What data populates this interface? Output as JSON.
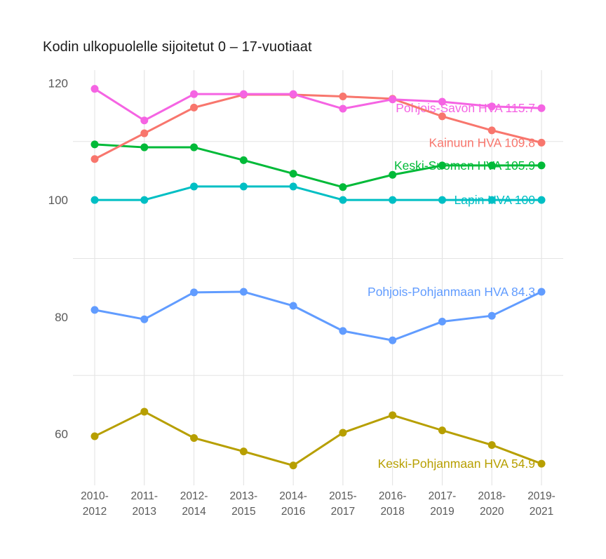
{
  "title": "Kodin ulkopuolelle sijoitetut 0 – 17-vuotiaat",
  "chart_data": {
    "type": "line",
    "title": "Kodin ulkopuolelle sijoitetut 0 – 17-vuotiaat",
    "xlabel": "",
    "ylabel": "",
    "categories": [
      "2010-2012",
      "2011-2013",
      "2012-2014",
      "2013-2015",
      "2014-2016",
      "2015-2017",
      "2016-2018",
      "2017-2019",
      "2018-2020",
      "2019-2021"
    ],
    "y_ticks": [
      60,
      80,
      100,
      120
    ],
    "y_minor_gridlines": [
      70,
      90,
      110
    ],
    "ylim": [
      51.2,
      122.2
    ],
    "grid": "vertical line per category, faint horizontal minor lines at 70/90/110",
    "legend_position": "inline labels at right end of each line",
    "axis_text_color": "#595959",
    "series": [
      {
        "id": "lapin",
        "name": "Lapin HVA",
        "label": "Lapin HVA 100",
        "color": "#00BFC4",
        "last_value": 100,
        "values": [
          100,
          100,
          102.3,
          102.3,
          102.3,
          100,
          100,
          100,
          100,
          100
        ]
      },
      {
        "id": "keski-suomen",
        "name": "Keski-Suomen HVA",
        "label": "Keski-Suomen HVA 105.9",
        "color": "#00BA38",
        "last_value": 105.9,
        "values": [
          109.5,
          109,
          109,
          106.8,
          104.5,
          102.2,
          104.3,
          105.9,
          105.9,
          105.9
        ]
      },
      {
        "id": "kainuun",
        "name": "Kainuun HVA",
        "label": "Kainuun HVA 109.8",
        "color": "#F8766D",
        "last_value": 109.8,
        "values": [
          107,
          111.4,
          115.8,
          118,
          118,
          117.7,
          117.3,
          114.3,
          111.9,
          109.8
        ]
      },
      {
        "id": "pohjois-savon",
        "name": "Pohjois-Savon HVA",
        "label": "Pohjois-Savon HVA 115.7",
        "color": "#F564E3",
        "last_value": 115.7,
        "values": [
          119,
          113.6,
          118.1,
          118.1,
          118.1,
          115.6,
          117.2,
          116.8,
          116,
          115.7
        ]
      },
      {
        "id": "pohjois-pohjanmaan",
        "name": "Pohjois-Pohjanmaan HVA",
        "label": "Pohjois-Pohjanmaan HVA 84.3",
        "color": "#619CFF",
        "last_value": 84.3,
        "values": [
          81.2,
          79.6,
          84.2,
          84.3,
          81.9,
          77.6,
          76,
          79.2,
          80.2,
          84.3
        ]
      },
      {
        "id": "keski-pohjanmaan",
        "name": "Keski-Pohjanmaan HVA",
        "label": "Keski-Pohjanmaan HVA 54.9",
        "color": "#B79F00",
        "last_value": 54.9,
        "values": [
          59.6,
          63.8,
          59.3,
          57,
          54.6,
          60.2,
          63.2,
          60.6,
          58.1,
          54.9
        ]
      }
    ]
  }
}
